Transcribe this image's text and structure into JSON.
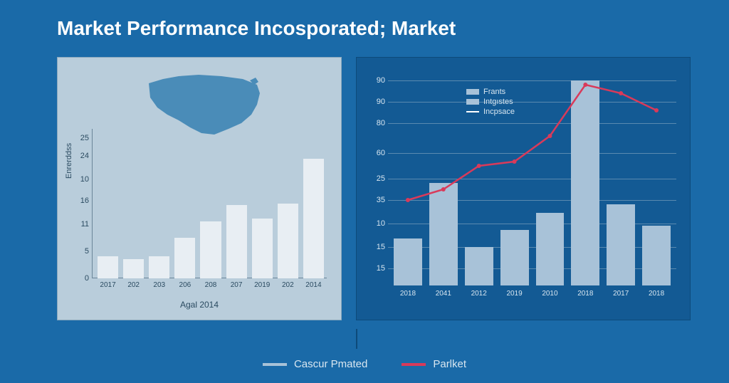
{
  "title": "Market Performance Incosporated; Market",
  "colors": {
    "page_bg": "#1a6aa8",
    "panel_left_bg": "#b9cddb",
    "panel_right_bg": "#135a94",
    "bar_left": "#e8eef3",
    "bar_right": "#a8c2d8",
    "line_right": "#d93a5a",
    "grid_right": "#5a8ab0",
    "text_light": "#d8e6f0",
    "text_dark": "#2a4a60",
    "map_fill": "#4a8cb8"
  },
  "left_chart": {
    "type": "bar",
    "ylabel": "Enrerddss",
    "xlabel": "Agal 2014",
    "yticks": [
      "0",
      "5",
      "11",
      "16",
      "10",
      "24",
      "25"
    ],
    "ytick_positions_pct": [
      100,
      82,
      64,
      48,
      34,
      18,
      6
    ],
    "categories": [
      "2017",
      "202",
      "203",
      "206",
      "208",
      "207",
      "2019",
      "202",
      "2014"
    ],
    "values_pct": [
      15,
      13,
      15,
      27,
      38,
      49,
      40,
      50,
      80
    ],
    "bar_color": "#e8eef3"
  },
  "right_chart": {
    "type": "bar+line",
    "yticks": [
      "90",
      "90",
      "80",
      "60",
      "25",
      "35",
      "10",
      "15",
      "15"
    ],
    "ytick_positions_pct": [
      4,
      14,
      24,
      38,
      50,
      60,
      71,
      82,
      92
    ],
    "categories": [
      "2018",
      "2041",
      "2012",
      "2019",
      "2010",
      "2018",
      "2017",
      "2018"
    ],
    "bar_values_pct": [
      22,
      48,
      18,
      26,
      34,
      96,
      38,
      28
    ],
    "bar_color": "#a8c2d8",
    "line_values_pct": [
      40,
      45,
      56,
      58,
      70,
      94,
      90,
      82
    ],
    "line_color": "#d93a5a",
    "line_width": 2.5,
    "legend": {
      "items": [
        {
          "label": "Frants",
          "swatch": "bar"
        },
        {
          "label": "Intgıstes",
          "swatch": "bar"
        },
        {
          "label": "Incpsace",
          "swatch": "line"
        }
      ]
    }
  },
  "bottom_legend": {
    "items": [
      {
        "label": "Cascur Pmated",
        "color": "#a8c2d8"
      },
      {
        "label": "Parlket",
        "color": "#d93a5a"
      }
    ]
  }
}
